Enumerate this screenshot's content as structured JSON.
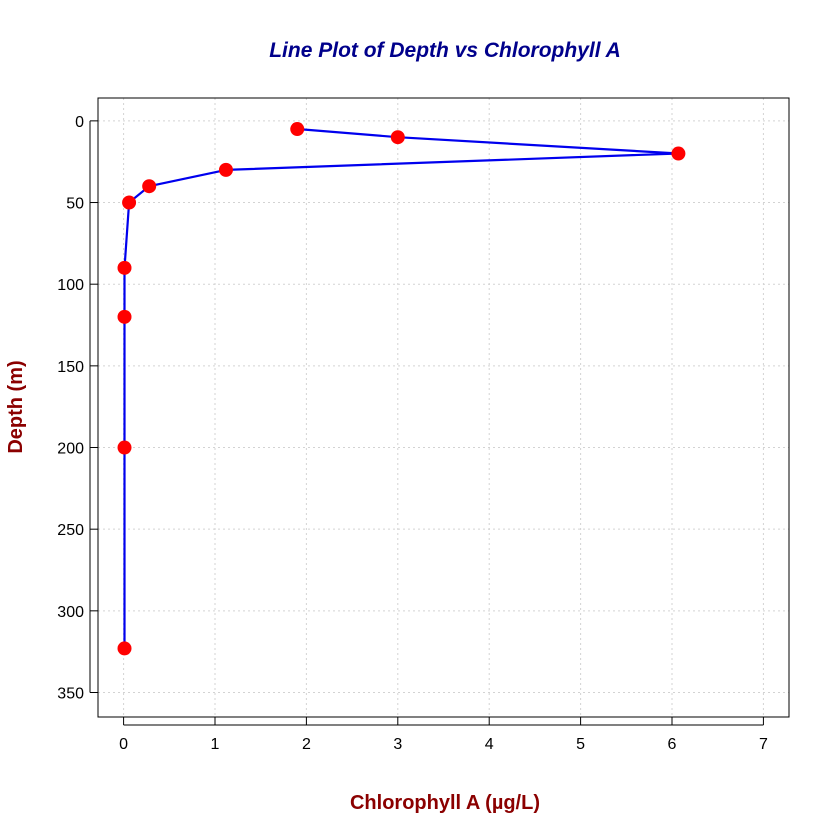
{
  "chart_data": {
    "type": "line",
    "title": "Line Plot of Depth vs Chlorophyll A",
    "xlabel": "Chlorophyll A (µg/L)",
    "ylabel": "Depth (m)",
    "xlim": [
      -0.28,
      7.28
    ],
    "ylim": [
      365,
      -14
    ],
    "y_reversed": true,
    "x_ticks": [
      "0",
      "1",
      "2",
      "3",
      "4",
      "5",
      "6",
      "7"
    ],
    "y_ticks": [
      "0",
      "50",
      "100",
      "150",
      "200",
      "250",
      "300",
      "350"
    ],
    "grid": true,
    "series": [
      {
        "x": [
          1.9,
          3.0,
          6.07,
          1.12,
          0.28,
          0.06,
          0.01,
          0.01,
          0.01,
          0.01
        ],
        "y": [
          5,
          10,
          20,
          30,
          40,
          50,
          90,
          120,
          200,
          323
        ]
      }
    ],
    "colors": {
      "title": "#00008B",
      "axis_title": "#8B0000",
      "line": "#0000EE",
      "point": "#FF0000",
      "grid": "#D3D3D3",
      "frame": "#000000"
    }
  }
}
